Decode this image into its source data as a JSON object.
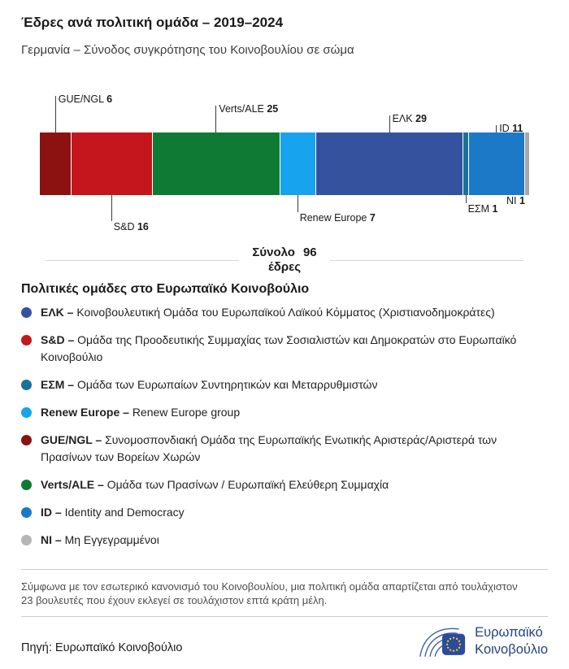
{
  "header": {
    "title": "Έδρες ανά πολιτική ομάδα – 2019–2024",
    "subtitle": "Γερμανία – Σύνοδος συγκρότησης του Κοινοβουλίου σε σώμα"
  },
  "chart_data": {
    "type": "bar",
    "variant": "horizontal-stacked-single-bar",
    "title": "Έδρες ανά πολιτική ομάδα – 2019–2024",
    "total": 96,
    "total_label": "Σύνολο",
    "total_value": "96",
    "total_unit": "έδρες",
    "categories": [
      "GUE/NGL",
      "S&D",
      "Verts/ALE",
      "Renew Europe",
      "ΕΛΚ",
      "ΕΣΜ",
      "ID",
      "NI"
    ],
    "values": [
      6,
      16,
      25,
      7,
      29,
      1,
      11,
      1
    ],
    "segments": [
      {
        "name": "GUE/NGL",
        "value": 6,
        "color": "#8b1211",
        "label_side": "top"
      },
      {
        "name": "S&D",
        "value": 16,
        "color": "#c4161c",
        "label_side": "bottom"
      },
      {
        "name": "Verts/ALE",
        "value": 25,
        "color": "#0f7a34",
        "label_side": "top"
      },
      {
        "name": "Renew Europe",
        "value": 7,
        "color": "#17a3ee",
        "label_side": "bottom"
      },
      {
        "name": "ΕΛΚ",
        "value": 29,
        "color": "#35529e",
        "label_side": "top"
      },
      {
        "name": "ΕΣΜ",
        "value": 1,
        "color": "#1a7199",
        "label_side": "bottom"
      },
      {
        "name": "ID",
        "value": 11,
        "color": "#1b79c8",
        "label_side": "top"
      },
      {
        "name": "NI",
        "value": 1,
        "color": "#a8a8ac",
        "label_side": "bottom"
      }
    ]
  },
  "legend": {
    "title": "Πολιτικές ομάδες στο Ευρωπαϊκό Κοινοβούλιο",
    "items": [
      {
        "abbr": "ΕΛΚ –",
        "desc": "Κοινοβουλευτική Ομάδα του Ευρωπαϊκού Λαϊκού Κόμματος (Χριστιανοδημοκράτες)",
        "color": "#35529e"
      },
      {
        "abbr": "S&D –",
        "desc": "Ομάδα της Προοδευτικής Συμμαχίας των Σοσιαλιστών και Δημοκρατών στο Ευρωπαϊκό Κοινοβούλιο",
        "color": "#c4161c"
      },
      {
        "abbr": "ΕΣΜ –",
        "desc": "Ομάδα των Ευρωπαίων Συντηρητικών και Μεταρρυθμιστών",
        "color": "#1a7199"
      },
      {
        "abbr": "Renew Europe –",
        "desc": "Renew Europe group",
        "color": "#17a3ee"
      },
      {
        "abbr": "GUE/NGL –",
        "desc": "Συνομοσπονδιακή Ομάδα της Ευρωπαϊκής Ενωτικής Αριστεράς/Αριστερά των Πρασίνων των Βορείων Χωρών",
        "color": "#8b1211"
      },
      {
        "abbr": "Verts/ALE –",
        "desc": "Ομάδα των Πρασίνων / Ευρωπαϊκή Ελεύθερη Συμμαχία",
        "color": "#0f7a34"
      },
      {
        "abbr": "ID –",
        "desc": "Identity and Democracy",
        "color": "#1b79c8"
      },
      {
        "abbr": "NI –",
        "desc": "Μη Εγγεγραμμένοι",
        "color": "#b5b5b8"
      }
    ]
  },
  "footnote": "Σύμφωνα με τον εσωτερικό κανονισμό του Κοινοβουλίου, μια πολιτική ομάδα απαρτίζεται από τουλάχιστον 23 βουλευτές που έχουν εκλεγεί σε τουλάχιστον επτά κράτη μέλη.",
  "source": {
    "label": "Πηγή:",
    "value": "Ευρωπαϊκό Κοινοβούλιο"
  },
  "logo": {
    "line1": "Ευρωπαϊκό",
    "line2": "Κοινοβούλιο"
  }
}
